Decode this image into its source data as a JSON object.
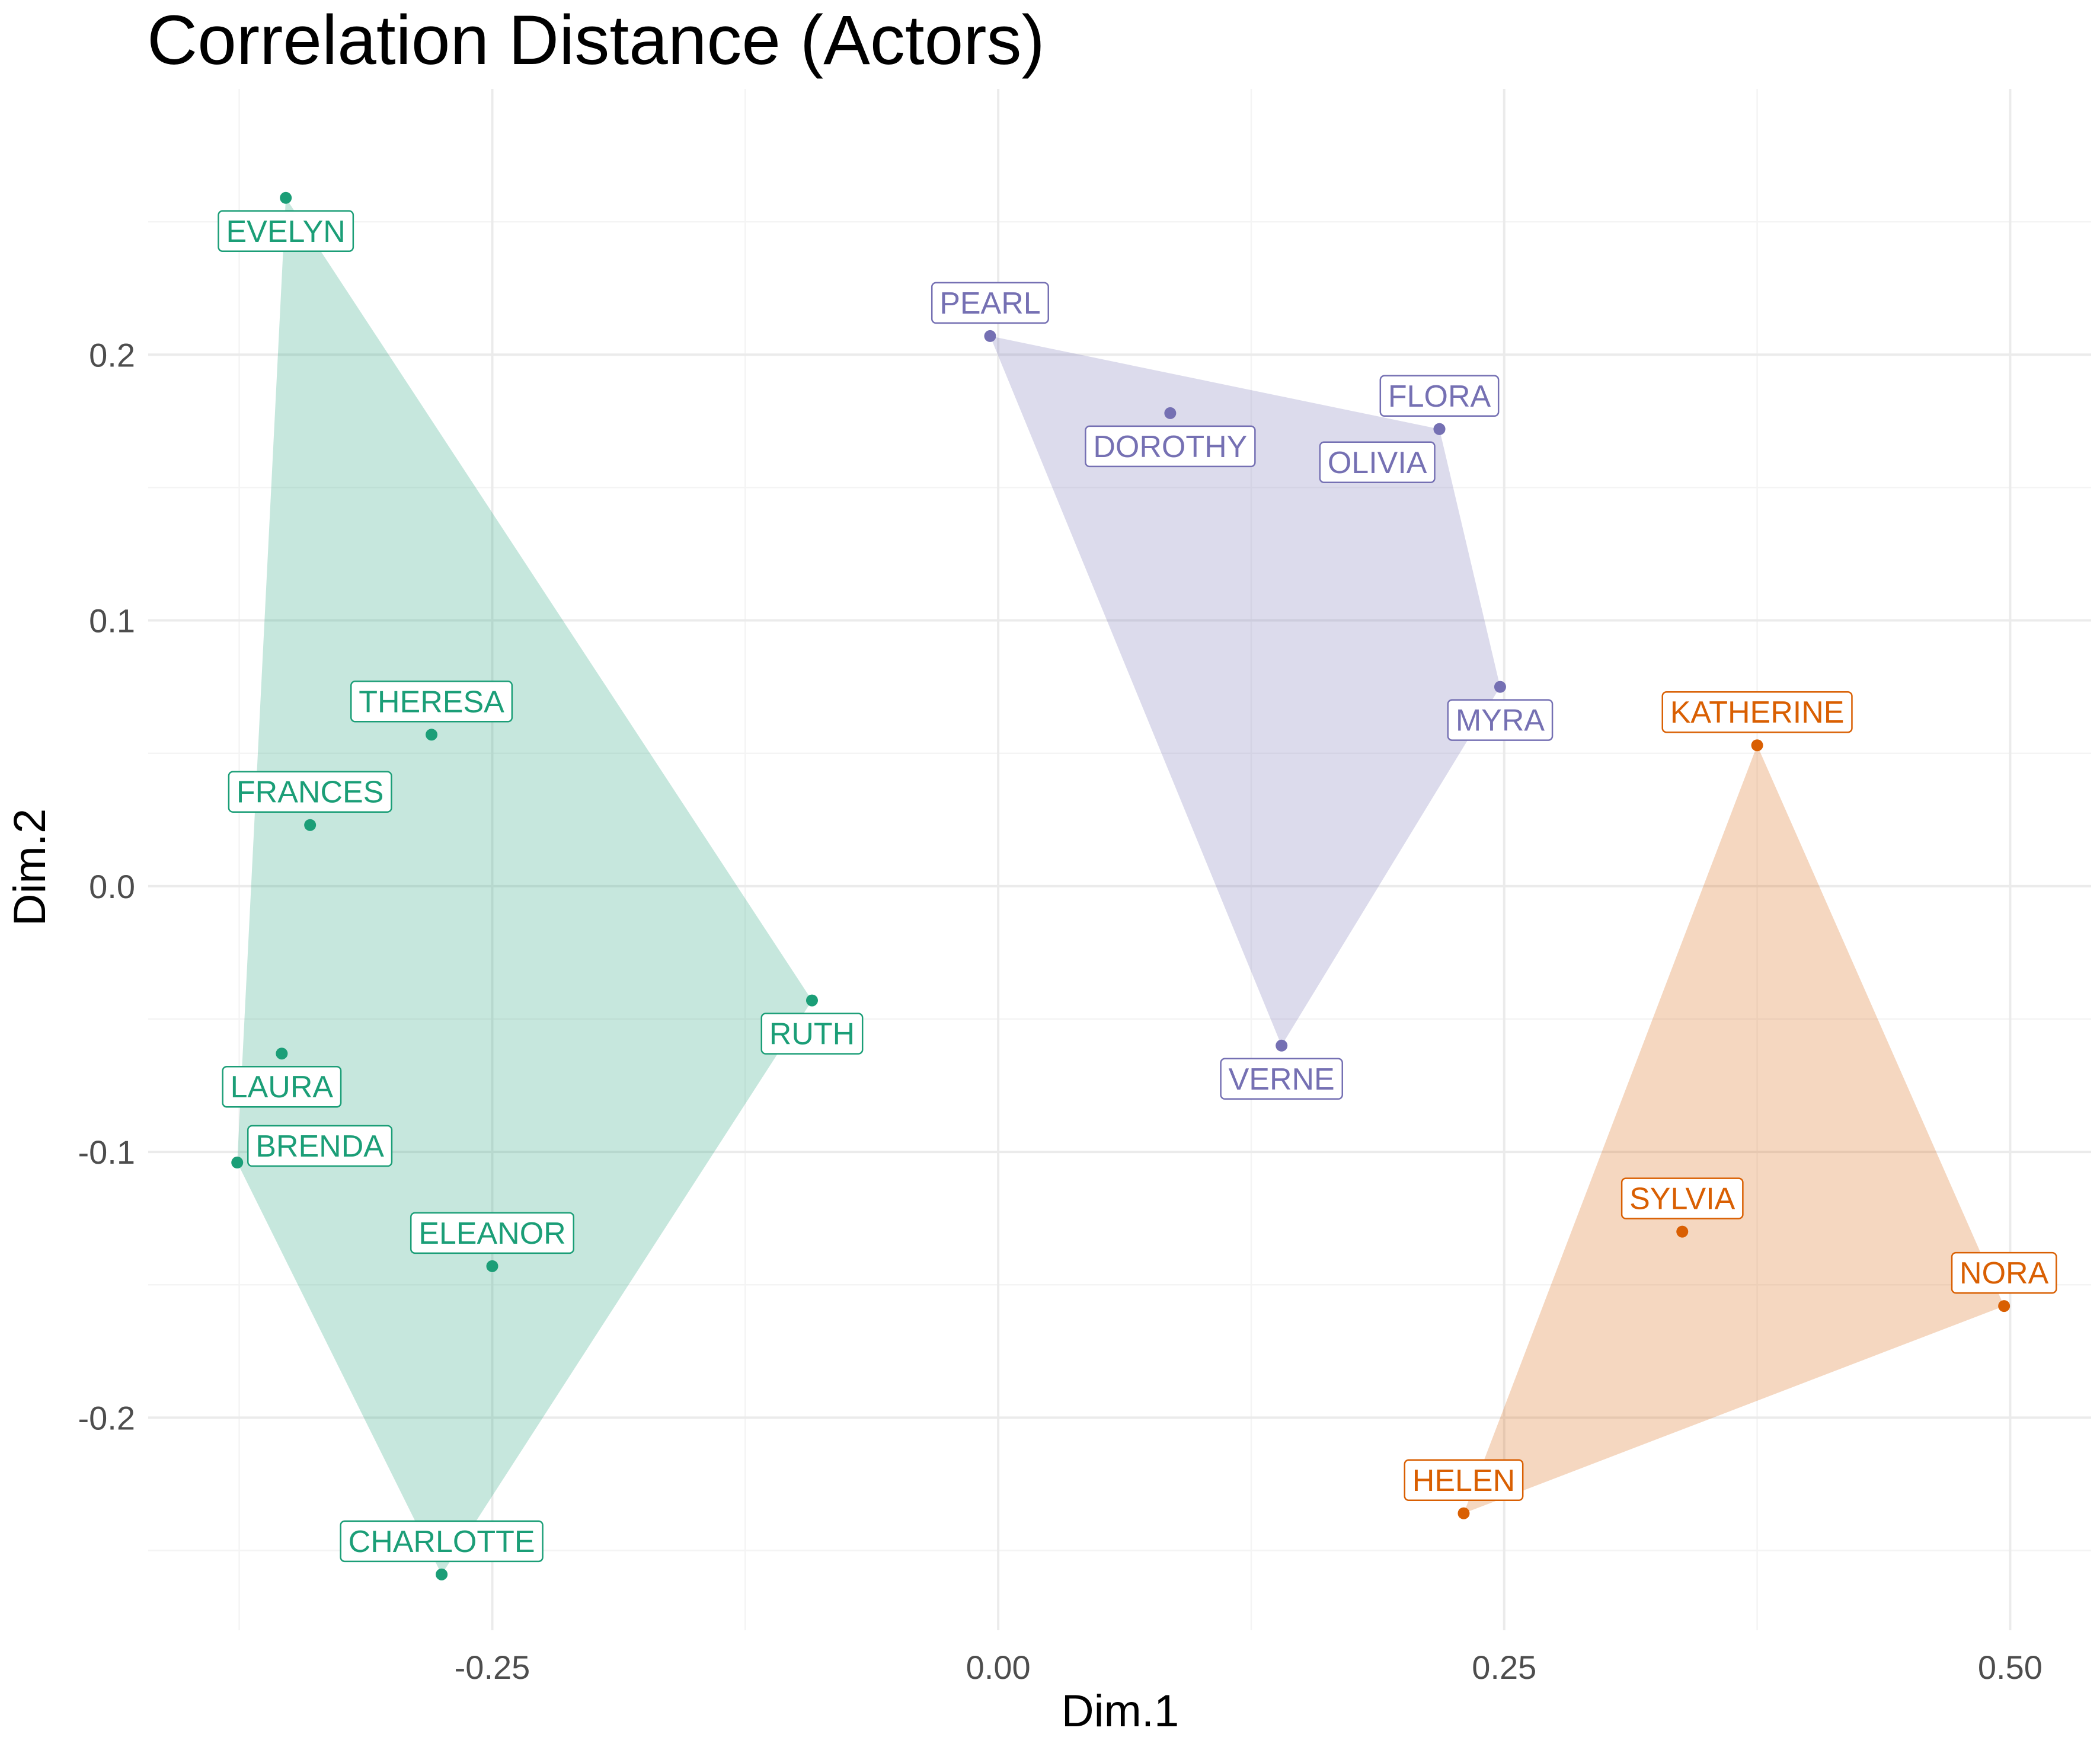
{
  "chart_data": {
    "type": "scatter",
    "title": "Correlation Distance (Actors)",
    "xlabel": "Dim.1",
    "ylabel": "Dim.2",
    "xlim": [
      -0.42,
      0.54
    ],
    "ylim": [
      -0.28,
      0.3
    ],
    "x_ticks": [
      -0.25,
      0.0,
      0.25,
      0.5
    ],
    "x_tick_labels": [
      "-0.25",
      "0.00",
      "0.25",
      "0.50"
    ],
    "y_ticks": [
      -0.2,
      -0.1,
      0.0,
      0.1,
      0.2
    ],
    "y_tick_labels": [
      "-0.2",
      "-0.1",
      "0.0",
      "0.1",
      "0.2"
    ],
    "grid": true,
    "legend": "none",
    "hulls": [
      {
        "color": "#1B9E77",
        "points": [
          "EVELYN",
          "RUTH",
          "CHARLOTTE",
          "BRENDA"
        ]
      },
      {
        "color": "#7570B3",
        "points": [
          "PEARL",
          "FLORA",
          "MYRA",
          "VERNE"
        ]
      },
      {
        "color": "#D95F02",
        "points": [
          "KATHERINE",
          "NORA",
          "HELEN"
        ]
      }
    ],
    "points": [
      {
        "label": "EVELYN",
        "x": -0.352,
        "y": 0.259,
        "color": "#1B9E77",
        "label_pos": "below"
      },
      {
        "label": "THERESA",
        "x": -0.28,
        "y": 0.057,
        "color": "#1B9E77",
        "label_pos": "above"
      },
      {
        "label": "FRANCES",
        "x": -0.34,
        "y": 0.023,
        "color": "#1B9E77",
        "label_pos": "above"
      },
      {
        "label": "RUTH",
        "x": -0.092,
        "y": -0.043,
        "color": "#1B9E77",
        "label_pos": "below"
      },
      {
        "label": "LAURA",
        "x": -0.354,
        "y": -0.063,
        "color": "#1B9E77",
        "label_pos": "below"
      },
      {
        "label": "BRENDA",
        "x": -0.376,
        "y": -0.104,
        "color": "#1B9E77",
        "label_pos": "above-right"
      },
      {
        "label": "ELEANOR",
        "x": -0.25,
        "y": -0.143,
        "color": "#1B9E77",
        "label_pos": "above"
      },
      {
        "label": "CHARLOTTE",
        "x": -0.275,
        "y": -0.259,
        "color": "#1B9E77",
        "label_pos": "above"
      },
      {
        "label": "PEARL",
        "x": -0.004,
        "y": 0.207,
        "color": "#7570B3",
        "label_pos": "above"
      },
      {
        "label": "DOROTHY",
        "x": 0.085,
        "y": 0.178,
        "color": "#7570B3",
        "label_pos": "below"
      },
      {
        "label": "FLORA",
        "x": 0.218,
        "y": 0.172,
        "color": "#7570B3",
        "label_pos": "above"
      },
      {
        "label": "OLIVIA",
        "x": 0.218,
        "y": 0.172,
        "color": "#7570B3",
        "label_pos": "below-left"
      },
      {
        "label": "MYRA",
        "x": 0.248,
        "y": 0.075,
        "color": "#7570B3",
        "label_pos": "below"
      },
      {
        "label": "VERNE",
        "x": 0.14,
        "y": -0.06,
        "color": "#7570B3",
        "label_pos": "below"
      },
      {
        "label": "KATHERINE",
        "x": 0.375,
        "y": 0.053,
        "color": "#D95F02",
        "label_pos": "above"
      },
      {
        "label": "SYLVIA",
        "x": 0.338,
        "y": -0.13,
        "color": "#D95F02",
        "label_pos": "above"
      },
      {
        "label": "NORA",
        "x": 0.497,
        "y": -0.158,
        "color": "#D95F02",
        "label_pos": "above"
      },
      {
        "label": "HELEN",
        "x": 0.23,
        "y": -0.236,
        "color": "#D95F02",
        "label_pos": "above"
      }
    ]
  }
}
